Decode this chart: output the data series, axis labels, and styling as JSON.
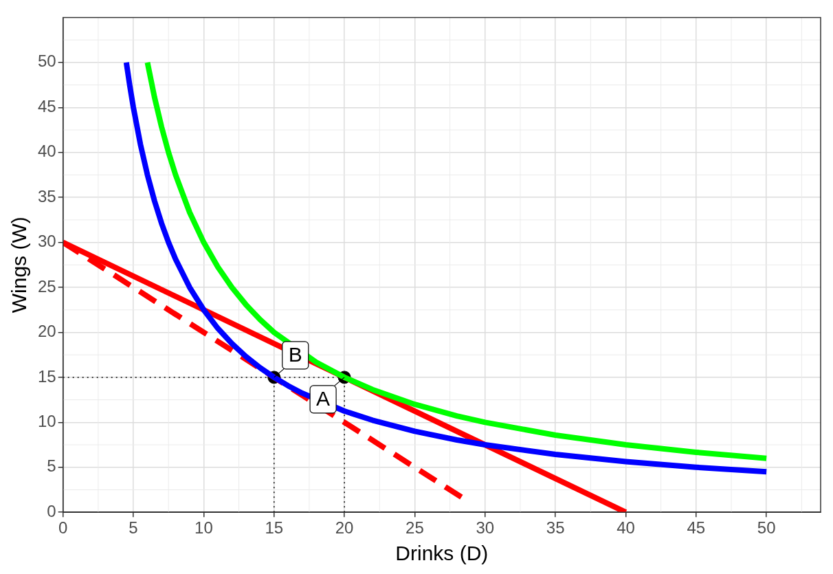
{
  "chart_data": {
    "type": "line",
    "xlabel": "Drinks (D)",
    "ylabel": "Wings (W)",
    "xlim": [
      0,
      53.85
    ],
    "ylim": [
      0,
      55
    ],
    "xticks": [
      0,
      5,
      10,
      15,
      20,
      25,
      30,
      35,
      40,
      45,
      50
    ],
    "yticks": [
      0,
      5,
      10,
      15,
      20,
      25,
      30,
      35,
      40,
      45,
      50
    ],
    "grid": true,
    "legend": false,
    "series": [
      {
        "color": "#0000ff",
        "line_style": "solid",
        "x": [
          4.5,
          4.75,
          5,
          5.5,
          6,
          6.5,
          7,
          7.5,
          8,
          9,
          10,
          11,
          12,
          13,
          14,
          15,
          16,
          17,
          20,
          22,
          25,
          28,
          30,
          35,
          40,
          45,
          50
        ],
        "values": [
          50,
          47.37,
          45,
          40.91,
          37.5,
          34.62,
          32.14,
          30,
          28.13,
          25,
          22.5,
          20.45,
          18.75,
          17.31,
          16.07,
          15,
          14.06,
          13.24,
          11.25,
          10.23,
          9,
          8.04,
          7.5,
          6.43,
          5.63,
          5,
          4.5
        ]
      },
      {
        "color": "#00ff00",
        "line_style": "solid",
        "x": [
          6,
          6.5,
          7,
          7.5,
          8,
          9,
          10,
          11,
          12,
          13,
          14,
          15,
          18,
          20,
          22,
          25,
          28,
          30,
          35,
          40,
          45,
          50
        ],
        "values": [
          50,
          46.15,
          42.86,
          40,
          37.5,
          33.33,
          30,
          27.27,
          25,
          23.08,
          21.43,
          20,
          16.67,
          15,
          13.64,
          12,
          10.71,
          10,
          8.57,
          7.5,
          6.67,
          6
        ]
      },
      {
        "color": "#ff0000",
        "line_style": "solid",
        "x": [
          0,
          40
        ],
        "values": [
          30,
          0
        ]
      },
      {
        "color": "#ff0000",
        "line_style": "dashed",
        "x": [
          0,
          28.5
        ],
        "values": [
          30,
          1.5
        ]
      },
      {
        "color": "#000000",
        "line_style": "dotted",
        "x": [
          0,
          20
        ],
        "values": [
          15,
          15
        ]
      },
      {
        "color": "#000000",
        "line_style": "dotted",
        "x": [
          15,
          15
        ],
        "values": [
          0,
          15
        ]
      },
      {
        "color": "#000000",
        "line_style": "dotted",
        "x": [
          20,
          20
        ],
        "values": [
          0,
          15
        ]
      },
      {
        "type": "scatter",
        "color": "#000000",
        "marker": "circle",
        "x": [
          15,
          20
        ],
        "values": [
          15,
          15
        ]
      }
    ],
    "annotations": [
      {
        "text": "B",
        "x": 15,
        "y": 15
      },
      {
        "text": "A",
        "x": 20,
        "y": 15
      }
    ]
  }
}
